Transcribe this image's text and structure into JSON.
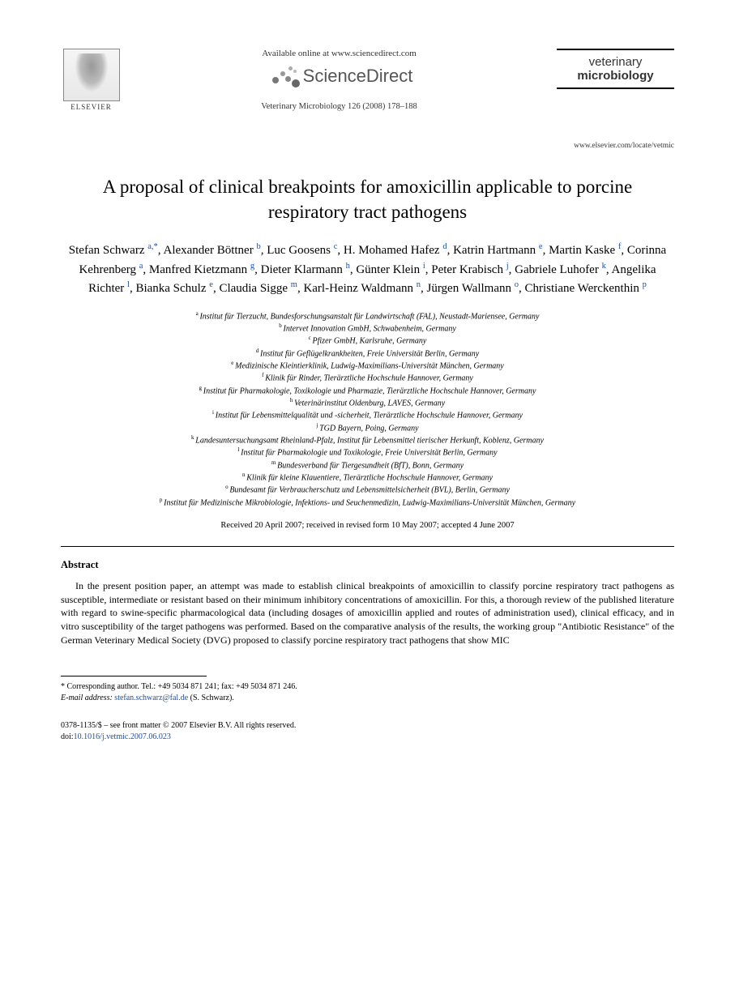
{
  "header": {
    "publisher": "ELSEVIER",
    "available_text": "Available online at www.sciencedirect.com",
    "sd_brand": "ScienceDirect",
    "citation": "Veterinary Microbiology 126 (2008) 178–188",
    "journal_line1": "veterinary",
    "journal_line2": "microbiology",
    "journal_url": "www.elsevier.com/locate/vetmic"
  },
  "title": "A proposal of clinical breakpoints for amoxicillin applicable to porcine respiratory tract pathogens",
  "authors": [
    {
      "name": "Stefan Schwarz",
      "sup": "a,",
      "corr": "*"
    },
    {
      "name": "Alexander Böttner",
      "sup": "b"
    },
    {
      "name": "Luc Goosens",
      "sup": "c"
    },
    {
      "name": "H. Mohamed Hafez",
      "sup": "d"
    },
    {
      "name": "Katrin Hartmann",
      "sup": "e"
    },
    {
      "name": "Martin Kaske",
      "sup": "f"
    },
    {
      "name": "Corinna Kehrenberg",
      "sup": "a"
    },
    {
      "name": "Manfred Kietzmann",
      "sup": "g"
    },
    {
      "name": "Dieter Klarmann",
      "sup": "h"
    },
    {
      "name": "Günter Klein",
      "sup": "i"
    },
    {
      "name": "Peter Krabisch",
      "sup": "j"
    },
    {
      "name": "Gabriele Luhofer",
      "sup": "k"
    },
    {
      "name": "Angelika Richter",
      "sup": "l"
    },
    {
      "name": "Bianka Schulz",
      "sup": "e"
    },
    {
      "name": "Claudia Sigge",
      "sup": "m"
    },
    {
      "name": "Karl-Heinz Waldmann",
      "sup": "n"
    },
    {
      "name": "Jürgen Wallmann",
      "sup": "o"
    },
    {
      "name": "Christiane Werckenthin",
      "sup": "p"
    }
  ],
  "affiliations": [
    {
      "sup": "a",
      "text": "Institut für Tierzucht, Bundesforschungsanstalt für Landwirtschaft (FAL), Neustadt-Mariensee, Germany"
    },
    {
      "sup": "b",
      "text": "Intervet Innovation GmbH, Schwabenheim, Germany"
    },
    {
      "sup": "c",
      "text": "Pfizer GmbH, Karlsruhe, Germany"
    },
    {
      "sup": "d",
      "text": "Institut für Geflügelkrankheiten, Freie Universität Berlin, Germany"
    },
    {
      "sup": "e",
      "text": "Medizinische Kleintierklinik, Ludwig-Maximilians-Universität München, Germany"
    },
    {
      "sup": "f",
      "text": "Klinik für Rinder, Tierärztliche Hochschule Hannover, Germany"
    },
    {
      "sup": "g",
      "text": "Institut für Pharmakologie, Toxikologie und Pharmazie, Tierärztliche Hochschule Hannover, Germany"
    },
    {
      "sup": "h",
      "text": "Veterinärinstitut Oldenburg, LAVES, Germany"
    },
    {
      "sup": "i",
      "text": "Institut für Lebensmittelqualität und -sicherheit, Tierärztliche Hochschule Hannover, Germany"
    },
    {
      "sup": "j",
      "text": "TGD Bayern, Poing, Germany"
    },
    {
      "sup": "k",
      "text": "Landesuntersuchungsamt Rheinland-Pfalz, Institut für Lebensmittel tierischer Herkunft, Koblenz, Germany"
    },
    {
      "sup": "l",
      "text": "Institut für Pharmakologie und Toxikologie, Freie Universität Berlin, Germany"
    },
    {
      "sup": "m",
      "text": "Bundesverband für Tiergesundheit (BfT), Bonn, Germany"
    },
    {
      "sup": "n",
      "text": "Klinik für kleine Klauentiere, Tierärztliche Hochschule Hannover, Germany"
    },
    {
      "sup": "o",
      "text": "Bundesamt für Verbraucherschutz und Lebensmittelsicherheit (BVL), Berlin, Germany"
    },
    {
      "sup": "p",
      "text": "Institut für Medizinische Mikrobiologie, Infektions- und Seuchenmedizin, Ludwig-Maximilians-Universität München, Germany"
    }
  ],
  "dates": "Received 20 April 2007; received in revised form 10 May 2007; accepted 4 June 2007",
  "abstract": {
    "heading": "Abstract",
    "text": "In the present position paper, an attempt was made to establish clinical breakpoints of amoxicillin to classify porcine respiratory tract pathogens as susceptible, intermediate or resistant based on their minimum inhibitory concentrations of amoxicillin. For this, a thorough review of the published literature with regard to swine-specific pharmacological data (including dosages of amoxicillin applied and routes of administration used), clinical efficacy, and in vitro susceptibility of the target pathogens was performed. Based on the comparative analysis of the results, the working group \"Antibiotic Resistance\" of the German Veterinary Medical Society (DVG) proposed to classify porcine respiratory tract pathogens that show MIC"
  },
  "footnote": {
    "corr_label": "* Corresponding author. Tel.: +49 5034 871 241; fax: +49 5034 871 246.",
    "email_label": "E-mail address:",
    "email": "stefan.schwarz@fal.de",
    "email_suffix": "(S. Schwarz)."
  },
  "footer": {
    "copyright": "0378-1135/$ – see front matter © 2007 Elsevier B.V. All rights reserved.",
    "doi_prefix": "doi:",
    "doi": "10.1016/j.vetmic.2007.06.023"
  },
  "colors": {
    "link": "#1a4db3",
    "text": "#000000",
    "header_gray": "#555555"
  }
}
